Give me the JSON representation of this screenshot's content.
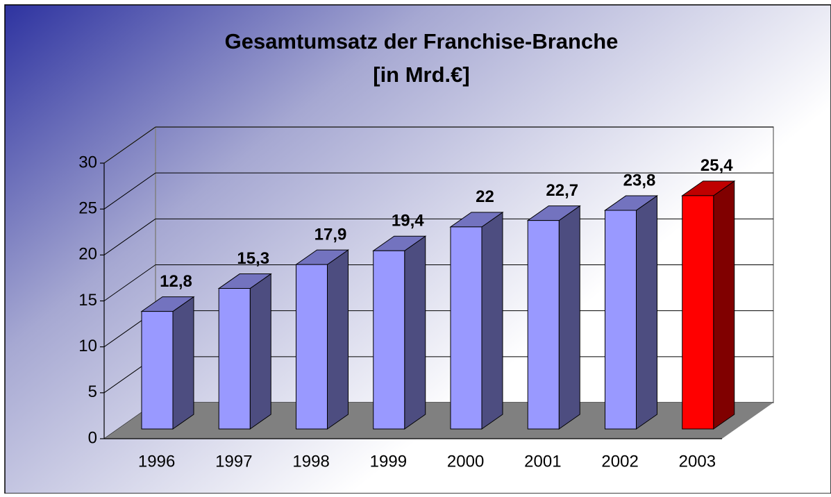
{
  "chart_data": {
    "type": "bar3d",
    "title": "Gesamtumsatz der Franchise-Branche",
    "subtitle": "[in Mrd.€]",
    "categories": [
      "1996",
      "1997",
      "1998",
      "1999",
      "2000",
      "2001",
      "2002",
      "2003"
    ],
    "values": [
      12.8,
      15.3,
      17.9,
      19.4,
      22,
      22.7,
      23.8,
      25.4
    ],
    "value_labels": [
      "12,8",
      "15,3",
      "17,9",
      "19,4",
      "22",
      "22,7",
      "23,8",
      "25,4"
    ],
    "colors": [
      "#9999ff",
      "#9999ff",
      "#9999ff",
      "#9999ff",
      "#9999ff",
      "#9999ff",
      "#9999ff",
      "#ff0000"
    ],
    "ylim": [
      0,
      30
    ],
    "yticks": [
      0,
      5,
      10,
      15,
      20,
      25,
      30
    ],
    "grid": true
  }
}
